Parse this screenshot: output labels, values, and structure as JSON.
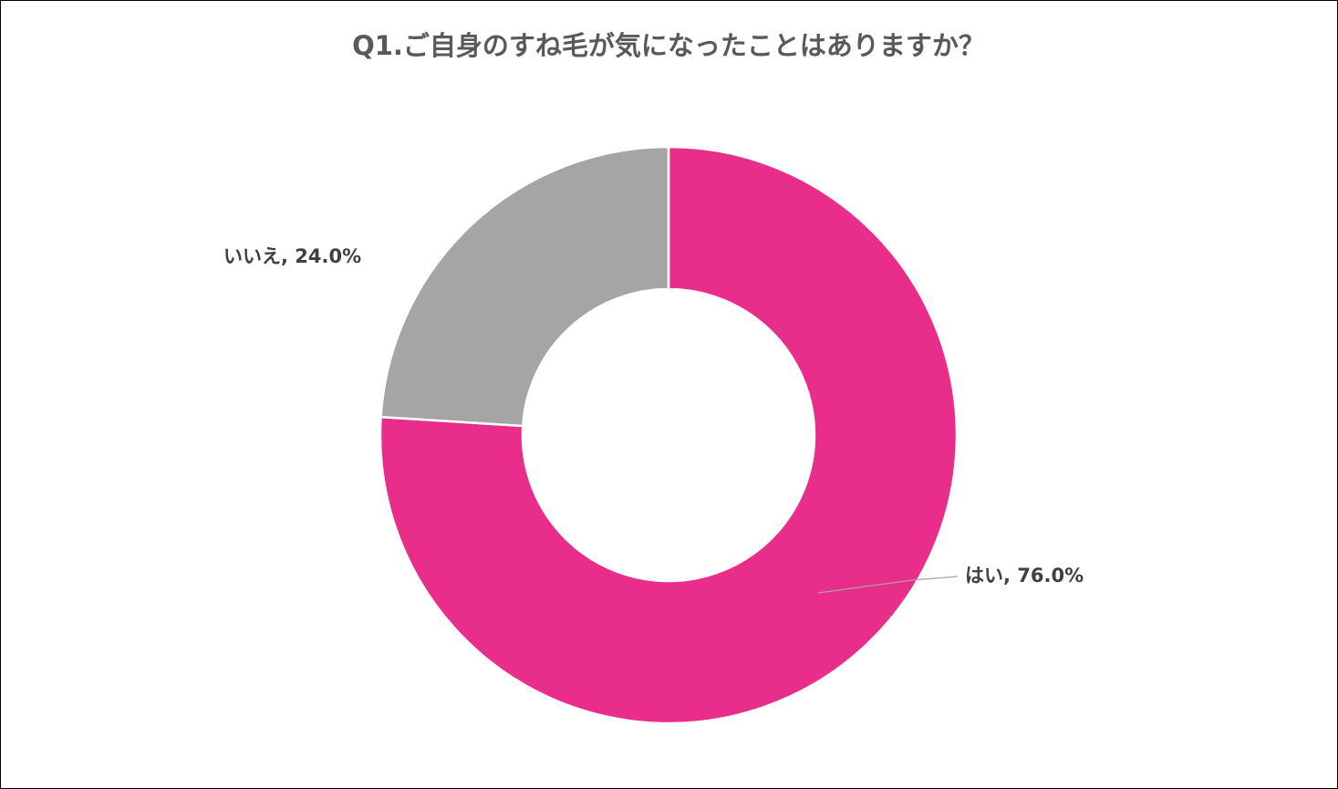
{
  "chart_data": {
    "type": "donut",
    "title": "Q1.ご自身のすね毛が気になったことはありますか？",
    "values": [
      76.0,
      24.0
    ],
    "value_labels": [
      "はい, 76.0%",
      "いいえ, 24.0%"
    ],
    "colors": [
      "#e82d8a",
      "#a5a5a5"
    ]
  }
}
